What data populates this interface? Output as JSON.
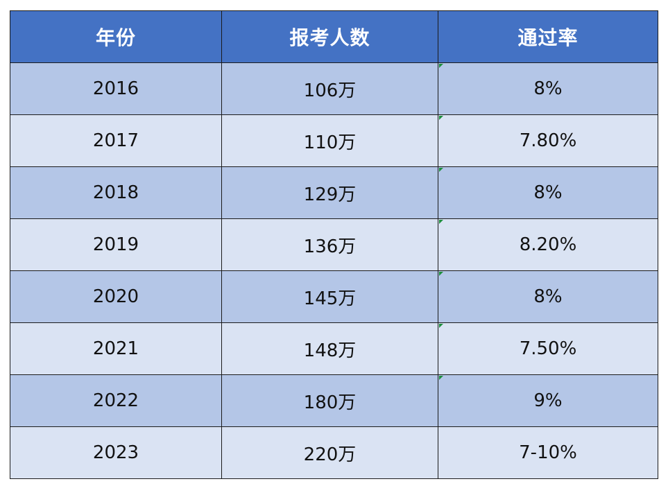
{
  "table": {
    "headers": [
      "年份",
      "报考人数",
      "通过率"
    ],
    "rows": [
      [
        "2016",
        "106万",
        "8%"
      ],
      [
        "2017",
        "110万",
        "7.80%"
      ],
      [
        "2018",
        "129万",
        "8%"
      ],
      [
        "2019",
        "136万",
        "8.20%"
      ],
      [
        "2020",
        "145万",
        "8%"
      ],
      [
        "2021",
        "148万",
        "7.50%"
      ],
      [
        "2022",
        "180万",
        "9%"
      ],
      [
        "2023",
        "220万",
        "7-10%"
      ]
    ]
  },
  "colors": {
    "header_bg": "#4472c4",
    "header_text": "#ffffff",
    "row_odd_bg": "#b4c6e7",
    "row_even_bg": "#dae3f3",
    "border": "#1a1a1a",
    "cell_marker": "#1e8f3e"
  }
}
